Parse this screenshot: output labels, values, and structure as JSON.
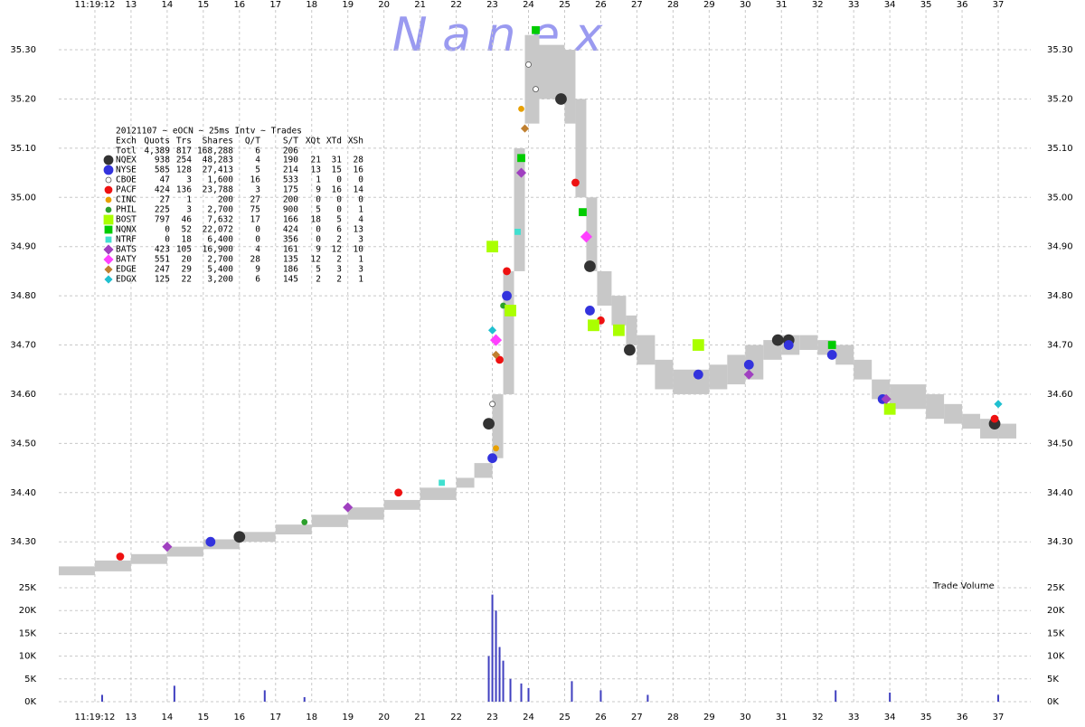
{
  "chart_data": {
    "type": "scatter",
    "watermark": "N a n e x",
    "xlim": [
      11,
      37.9
    ],
    "xticks": [
      {
        "value": 12,
        "label": "11:19:12"
      },
      13,
      14,
      15,
      16,
      17,
      18,
      19,
      20,
      21,
      22,
      23,
      24,
      25,
      26,
      27,
      28,
      29,
      30,
      31,
      32,
      33,
      34,
      35,
      36,
      37
    ],
    "ylim": [
      34.225,
      35.392
    ],
    "yticks": [
      {
        "value": 34.3,
        "label": "34.30"
      },
      {
        "value": 34.4,
        "label": "34.40"
      },
      {
        "value": 34.5,
        "label": "34.50"
      },
      {
        "value": 34.6,
        "label": "34.60"
      },
      {
        "value": 34.7,
        "label": "34.70"
      },
      {
        "value": 34.8,
        "label": "34.80"
      },
      {
        "value": 34.9,
        "label": "34.90"
      },
      {
        "value": 35.0,
        "label": "35.00"
      },
      {
        "value": 35.1,
        "label": "35.10"
      },
      {
        "value": 35.2,
        "label": "35.20"
      },
      {
        "value": 35.3,
        "label": "35.30"
      }
    ],
    "grid": true,
    "band": {
      "color": "#c8c8c8",
      "x": [
        11.0,
        12.0,
        13.0,
        14.0,
        15.0,
        16.0,
        17.0,
        18.0,
        19.0,
        20.0,
        21.0,
        22.0,
        22.5,
        23.0,
        23.3,
        23.6,
        23.9,
        24.3,
        25.0,
        25.3,
        25.6,
        25.9,
        26.3,
        26.7,
        27.0,
        27.5,
        28.0,
        29.0,
        29.5,
        30.0,
        30.5,
        31.0,
        31.5,
        32.0,
        32.5,
        33.0,
        33.5,
        34.0,
        35.0,
        35.5,
        36.0,
        36.5,
        37.0,
        37.5
      ],
      "low": [
        34.232,
        34.24,
        34.255,
        34.27,
        34.285,
        34.3,
        34.315,
        34.33,
        34.345,
        34.365,
        34.385,
        34.41,
        34.43,
        34.47,
        34.6,
        34.85,
        35.15,
        35.2,
        35.15,
        35.0,
        34.85,
        34.78,
        34.74,
        34.7,
        34.66,
        34.61,
        34.6,
        34.61,
        34.62,
        34.63,
        34.67,
        34.68,
        34.69,
        34.68,
        34.66,
        34.63,
        34.59,
        34.57,
        34.55,
        34.54,
        34.53,
        34.51,
        34.51,
        34.53
      ],
      "high": [
        34.25,
        34.262,
        34.275,
        34.29,
        34.305,
        34.32,
        34.335,
        34.355,
        34.37,
        34.385,
        34.41,
        34.43,
        34.46,
        34.6,
        34.85,
        35.1,
        35.33,
        35.31,
        35.3,
        35.2,
        35.0,
        34.85,
        34.8,
        34.76,
        34.72,
        34.67,
        34.65,
        34.66,
        34.68,
        34.7,
        34.71,
        34.72,
        34.72,
        34.71,
        34.7,
        34.67,
        34.63,
        34.62,
        34.6,
        34.58,
        34.56,
        34.55,
        34.54,
        34.56
      ]
    },
    "legend": {
      "title": "20121107 ~ eOCN ~ 25ms Intv ~ Trades",
      "columns": [
        "Exch",
        "Quots",
        "Trs",
        "Shares",
        "Q/T",
        "S/T",
        "XQt",
        "XTd",
        "XSh"
      ],
      "total": [
        "Totl",
        "4,389",
        "817",
        "168,288",
        "6",
        "206"
      ]
    },
    "series": [
      {
        "name": "NQEX",
        "color": "#333333",
        "marker": "circle",
        "size": 6,
        "stats": [
          "938",
          "254",
          "48,283",
          "4",
          "190",
          "21",
          "31",
          "28"
        ],
        "x": [
          16.0,
          22.9,
          24.9,
          25.7,
          26.8,
          30.9,
          31.2,
          36.9
        ],
        "values": [
          34.31,
          34.54,
          35.2,
          34.86,
          34.69,
          34.71,
          34.71,
          34.54
        ]
      },
      {
        "name": "NYSE",
        "color": "#3333dd",
        "marker": "circle",
        "size": 5,
        "stats": [
          "585",
          "128",
          "27,413",
          "5",
          "214",
          "13",
          "15",
          "16"
        ],
        "x": [
          15.2,
          23.0,
          23.4,
          25.7,
          28.7,
          30.1,
          31.2,
          32.4,
          33.8
        ],
        "values": [
          34.3,
          34.47,
          34.8,
          34.77,
          34.64,
          34.66,
          34.7,
          34.68,
          34.59
        ]
      },
      {
        "name": "CBOE",
        "color": "#ffffff",
        "marker": "circle",
        "size": 3,
        "stats": [
          "47",
          "3",
          "1,600",
          "16",
          "533",
          "1",
          "0",
          "0"
        ],
        "x": [
          23.0,
          24.2,
          24.0
        ],
        "values": [
          34.58,
          35.22,
          35.27
        ]
      },
      {
        "name": "PACF",
        "color": "#ee1111",
        "marker": "circle",
        "size": 4,
        "stats": [
          "424",
          "136",
          "23,788",
          "3",
          "175",
          "9",
          "16",
          "14"
        ],
        "x": [
          12.7,
          20.4,
          23.2,
          23.4,
          25.3,
          26.0,
          36.9
        ],
        "values": [
          34.27,
          34.4,
          34.67,
          34.85,
          35.03,
          34.75,
          34.55
        ]
      },
      {
        "name": "CINC",
        "color": "#e8a000",
        "marker": "circle",
        "size": 3,
        "stats": [
          "27",
          "1",
          "200",
          "27",
          "200",
          "0",
          "0",
          "0"
        ],
        "x": [
          23.1,
          23.8
        ],
        "values": [
          34.49,
          35.18
        ]
      },
      {
        "name": "PHIL",
        "color": "#2ca02c",
        "marker": "circle",
        "size": 3,
        "stats": [
          "225",
          "3",
          "2,700",
          "75",
          "900",
          "5",
          "0",
          "1"
        ],
        "x": [
          17.8,
          23.3
        ],
        "values": [
          34.34,
          34.78
        ]
      },
      {
        "name": "BOST",
        "color": "#aaff00",
        "marker": "square",
        "size": 6,
        "stats": [
          "797",
          "46",
          "7,632",
          "17",
          "166",
          "18",
          "5",
          "4"
        ],
        "x": [
          23.0,
          23.5,
          25.8,
          26.5,
          28.7,
          34.0
        ],
        "values": [
          34.9,
          34.77,
          34.74,
          34.73,
          34.7,
          34.57
        ]
      },
      {
        "name": "NQNX",
        "color": "#00cc00",
        "marker": "square",
        "size": 4,
        "stats": [
          "0",
          "52",
          "22,072",
          "0",
          "424",
          "0",
          "6",
          "13"
        ],
        "x": [
          23.8,
          24.2,
          25.5,
          32.4
        ],
        "values": [
          35.08,
          35.34,
          34.97,
          34.7
        ]
      },
      {
        "name": "NTRF",
        "color": "#40e0d0",
        "marker": "square",
        "size": 3,
        "stats": [
          "0",
          "18",
          "6,400",
          "0",
          "356",
          "0",
          "2",
          "3"
        ],
        "x": [
          21.6,
          23.7
        ],
        "values": [
          34.42,
          34.93
        ]
      },
      {
        "name": "BATS",
        "color": "#a040c0",
        "marker": "diamond",
        "size": 5,
        "stats": [
          "423",
          "105",
          "16,900",
          "4",
          "161",
          "9",
          "12",
          "10"
        ],
        "x": [
          14.0,
          19.0,
          23.8,
          30.1,
          33.9
        ],
        "values": [
          34.29,
          34.37,
          35.05,
          34.64,
          34.59
        ]
      },
      {
        "name": "BATY",
        "color": "#ff40ff",
        "marker": "diamond",
        "size": 6,
        "stats": [
          "551",
          "20",
          "2,700",
          "28",
          "135",
          "12",
          "2",
          "1"
        ],
        "x": [
          23.1,
          25.6
        ],
        "values": [
          34.71,
          34.92
        ]
      },
      {
        "name": "EDGE",
        "color": "#c08030",
        "marker": "diamond",
        "size": 4,
        "stats": [
          "247",
          "29",
          "5,400",
          "9",
          "186",
          "5",
          "3",
          "3"
        ],
        "x": [
          23.1,
          23.9
        ],
        "values": [
          34.68,
          35.14
        ]
      },
      {
        "name": "EDGX",
        "color": "#20c0d0",
        "marker": "diamond",
        "size": 4,
        "stats": [
          "125",
          "22",
          "3,200",
          "6",
          "145",
          "2",
          "2",
          "1"
        ],
        "x": [
          23.0,
          37.0
        ],
        "values": [
          34.73,
          34.58
        ]
      }
    ],
    "volume": {
      "label": "Trade Volume",
      "color": "#4040c0",
      "ylim": [
        0,
        26000
      ],
      "yticks": [
        {
          "value": 0,
          "label": "0K"
        },
        {
          "value": 5000,
          "label": "5K"
        },
        {
          "value": 10000,
          "label": "10K"
        },
        {
          "value": 15000,
          "label": "15K"
        },
        {
          "value": 20000,
          "label": "20K"
        },
        {
          "value": 25000,
          "label": "25K"
        }
      ],
      "x": [
        12.2,
        14.2,
        16.7,
        17.8,
        22.9,
        23.0,
        23.1,
        23.2,
        23.3,
        23.5,
        23.8,
        24.0,
        25.2,
        26.0,
        27.3,
        32.5,
        34.0,
        37.0
      ],
      "values": [
        1500,
        3500,
        2500,
        1000,
        10000,
        23500,
        20000,
        12000,
        9000,
        5000,
        4000,
        3000,
        4500,
        2500,
        1500,
        2500,
        2000,
        1500
      ]
    }
  }
}
